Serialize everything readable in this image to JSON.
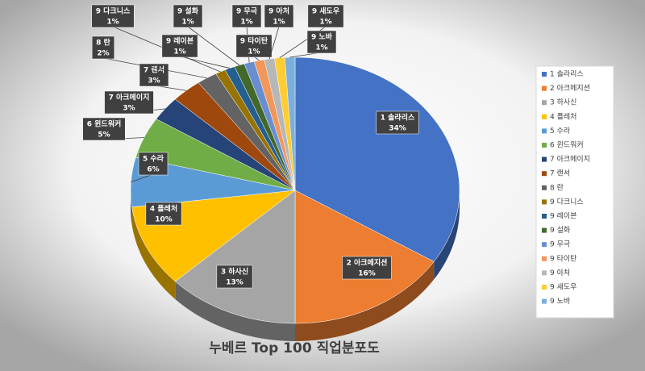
{
  "chart_data": {
    "type": "pie",
    "title": "누베르 Top 100 직업분포도",
    "categories": [
      "1 솔라리스",
      "2 아크메지션",
      "3 하사신",
      "4 플레처",
      "5 수라",
      "6 윈드워커",
      "7 아크메이지",
      "7 랜서",
      "8 란",
      "9 다크니스",
      "9 레이븐",
      "9 설화",
      "9 무극",
      "9 타이탄",
      "9 아처",
      "9 새도우",
      "9 노바"
    ],
    "values": [
      34,
      16,
      13,
      10,
      6,
      5,
      3,
      3,
      2,
      1,
      1,
      1,
      1,
      1,
      1,
      1,
      1
    ],
    "value_labels": [
      "34%",
      "16%",
      "13%",
      "10%",
      "6%",
      "5%",
      "3%",
      "3%",
      "2%",
      "1%",
      "1%",
      "1%",
      "1%",
      "1%",
      "1%",
      "1%",
      "1%"
    ],
    "colors": [
      "#4472c4",
      "#ed7d31",
      "#a5a5a5",
      "#ffc000",
      "#5b9bd5",
      "#70ad47",
      "#264478",
      "#9e480e",
      "#636363",
      "#997300",
      "#255e91",
      "#43682b",
      "#698ed0",
      "#f1975a",
      "#b7b7b7",
      "#ffcd33",
      "#7cafdd"
    ],
    "legend": true,
    "legend_position": "right"
  }
}
